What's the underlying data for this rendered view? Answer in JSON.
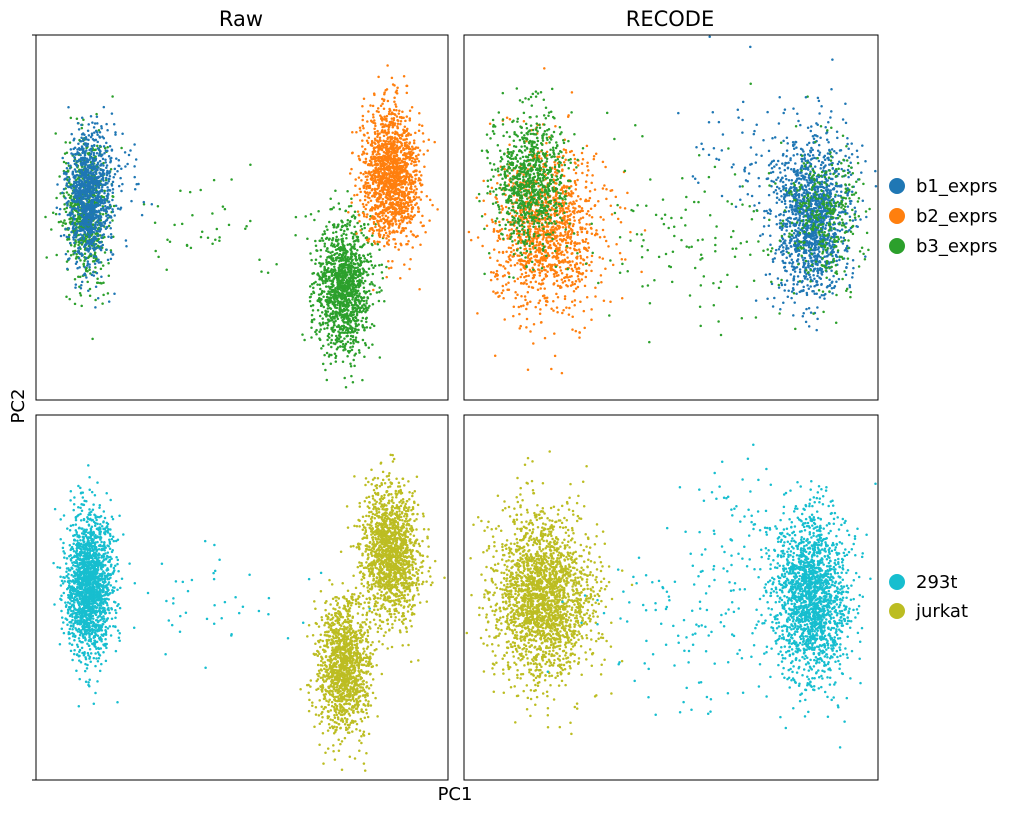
{
  "chart_data": {
    "type": "scatter",
    "xlabel": "PC1",
    "ylabel": "PC2",
    "columns": [
      "Raw",
      "RECODE"
    ],
    "x_ticks_shown": false,
    "y_ticks_shown": false,
    "legends": [
      {
        "row": "top",
        "placement": "right",
        "entries": [
          {
            "name": "b1_exprs",
            "color": "#1f77b4"
          },
          {
            "name": "b2_exprs",
            "color": "#ff7f0e"
          },
          {
            "name": "b3_exprs",
            "color": "#2ca02c"
          }
        ]
      },
      {
        "row": "bottom",
        "placement": "right",
        "entries": [
          {
            "name": "293t",
            "color": "#17becf"
          },
          {
            "name": "jurkat",
            "color": "#bcbd22"
          }
        ]
      }
    ],
    "panels": [
      {
        "row": "top",
        "column": "Raw",
        "title": "Raw",
        "xlim": [
          0,
          100
        ],
        "ylim": [
          0,
          100
        ],
        "clusters": [
          {
            "series": "b3_exprs",
            "center": [
              12,
              51
            ],
            "spread": [
              2.8,
              9.5
            ],
            "n": 700
          },
          {
            "series": "b1_exprs",
            "center": [
              13,
              56
            ],
            "spread": [
              2.6,
              9
            ],
            "n": 1100
          },
          {
            "series": "b3_exprs",
            "center": [
              75,
              31
            ],
            "spread": [
              3.3,
              9
            ],
            "n": 1300
          },
          {
            "series": "b2_exprs",
            "center": [
              86,
              62
            ],
            "spread": [
              3.5,
              9
            ],
            "n": 1500
          },
          {
            "series": "b3_exprs",
            "center": [
              45,
              48
            ],
            "spread": [
              14,
              9
            ],
            "n": 45
          },
          {
            "series": "b1_exprs",
            "center": [
              19,
              62
            ],
            "spread": [
              4,
              8
            ],
            "n": 50
          }
        ]
      },
      {
        "row": "top",
        "column": "RECODE",
        "title": "RECODE",
        "xlim": [
          0,
          100
        ],
        "ylim": [
          0,
          100
        ],
        "clusters": [
          {
            "series": "b2_exprs",
            "center": [
              20,
              46
            ],
            "spread": [
              6.5,
              11
            ],
            "n": 1300
          },
          {
            "series": "b3_exprs",
            "center": [
              16,
              60
            ],
            "spread": [
              4.5,
              9
            ],
            "n": 900
          },
          {
            "series": "b1_exprs",
            "center": [
              84,
              50
            ],
            "spread": [
              4.5,
              11
            ],
            "n": 1500
          },
          {
            "series": "b3_exprs",
            "center": [
              87,
              50
            ],
            "spread": [
              4.5,
              10
            ],
            "n": 350
          },
          {
            "series": "b3_exprs",
            "center": [
              55,
              45
            ],
            "spread": [
              13,
              12
            ],
            "n": 130
          },
          {
            "series": "b1_exprs",
            "center": [
              67,
              70
            ],
            "spread": [
              6,
              10
            ],
            "n": 60
          }
        ]
      },
      {
        "row": "bottom",
        "column": "Raw",
        "title": "",
        "xlim": [
          0,
          100
        ],
        "ylim": [
          0,
          100
        ],
        "clusters": [
          {
            "series": "293t",
            "center": [
              13,
              53
            ],
            "spread": [
              2.8,
              9.5
            ],
            "n": 1800
          },
          {
            "series": "293t",
            "center": [
              45,
              48
            ],
            "spread": [
              14,
              9
            ],
            "n": 45
          },
          {
            "series": "jurkat",
            "center": [
              75,
              31
            ],
            "spread": [
              3.3,
              9
            ],
            "n": 1300
          },
          {
            "series": "jurkat",
            "center": [
              86,
              62
            ],
            "spread": [
              3.5,
              9
            ],
            "n": 1500
          }
        ]
      },
      {
        "row": "bottom",
        "column": "RECODE",
        "title": "",
        "xlim": [
          0,
          100
        ],
        "ylim": [
          0,
          100
        ],
        "clusters": [
          {
            "series": "jurkat",
            "center": [
              19,
              50
            ],
            "spread": [
              6,
              11
            ],
            "n": 2200
          },
          {
            "series": "293t",
            "center": [
              84,
              50
            ],
            "spread": [
              4.5,
              11
            ],
            "n": 1850
          },
          {
            "series": "293t",
            "center": [
              55,
              45
            ],
            "spread": [
              13,
              12
            ],
            "n": 130
          },
          {
            "series": "293t",
            "center": [
              67,
              70
            ],
            "spread": [
              6,
              10
            ],
            "n": 60
          }
        ]
      }
    ]
  }
}
